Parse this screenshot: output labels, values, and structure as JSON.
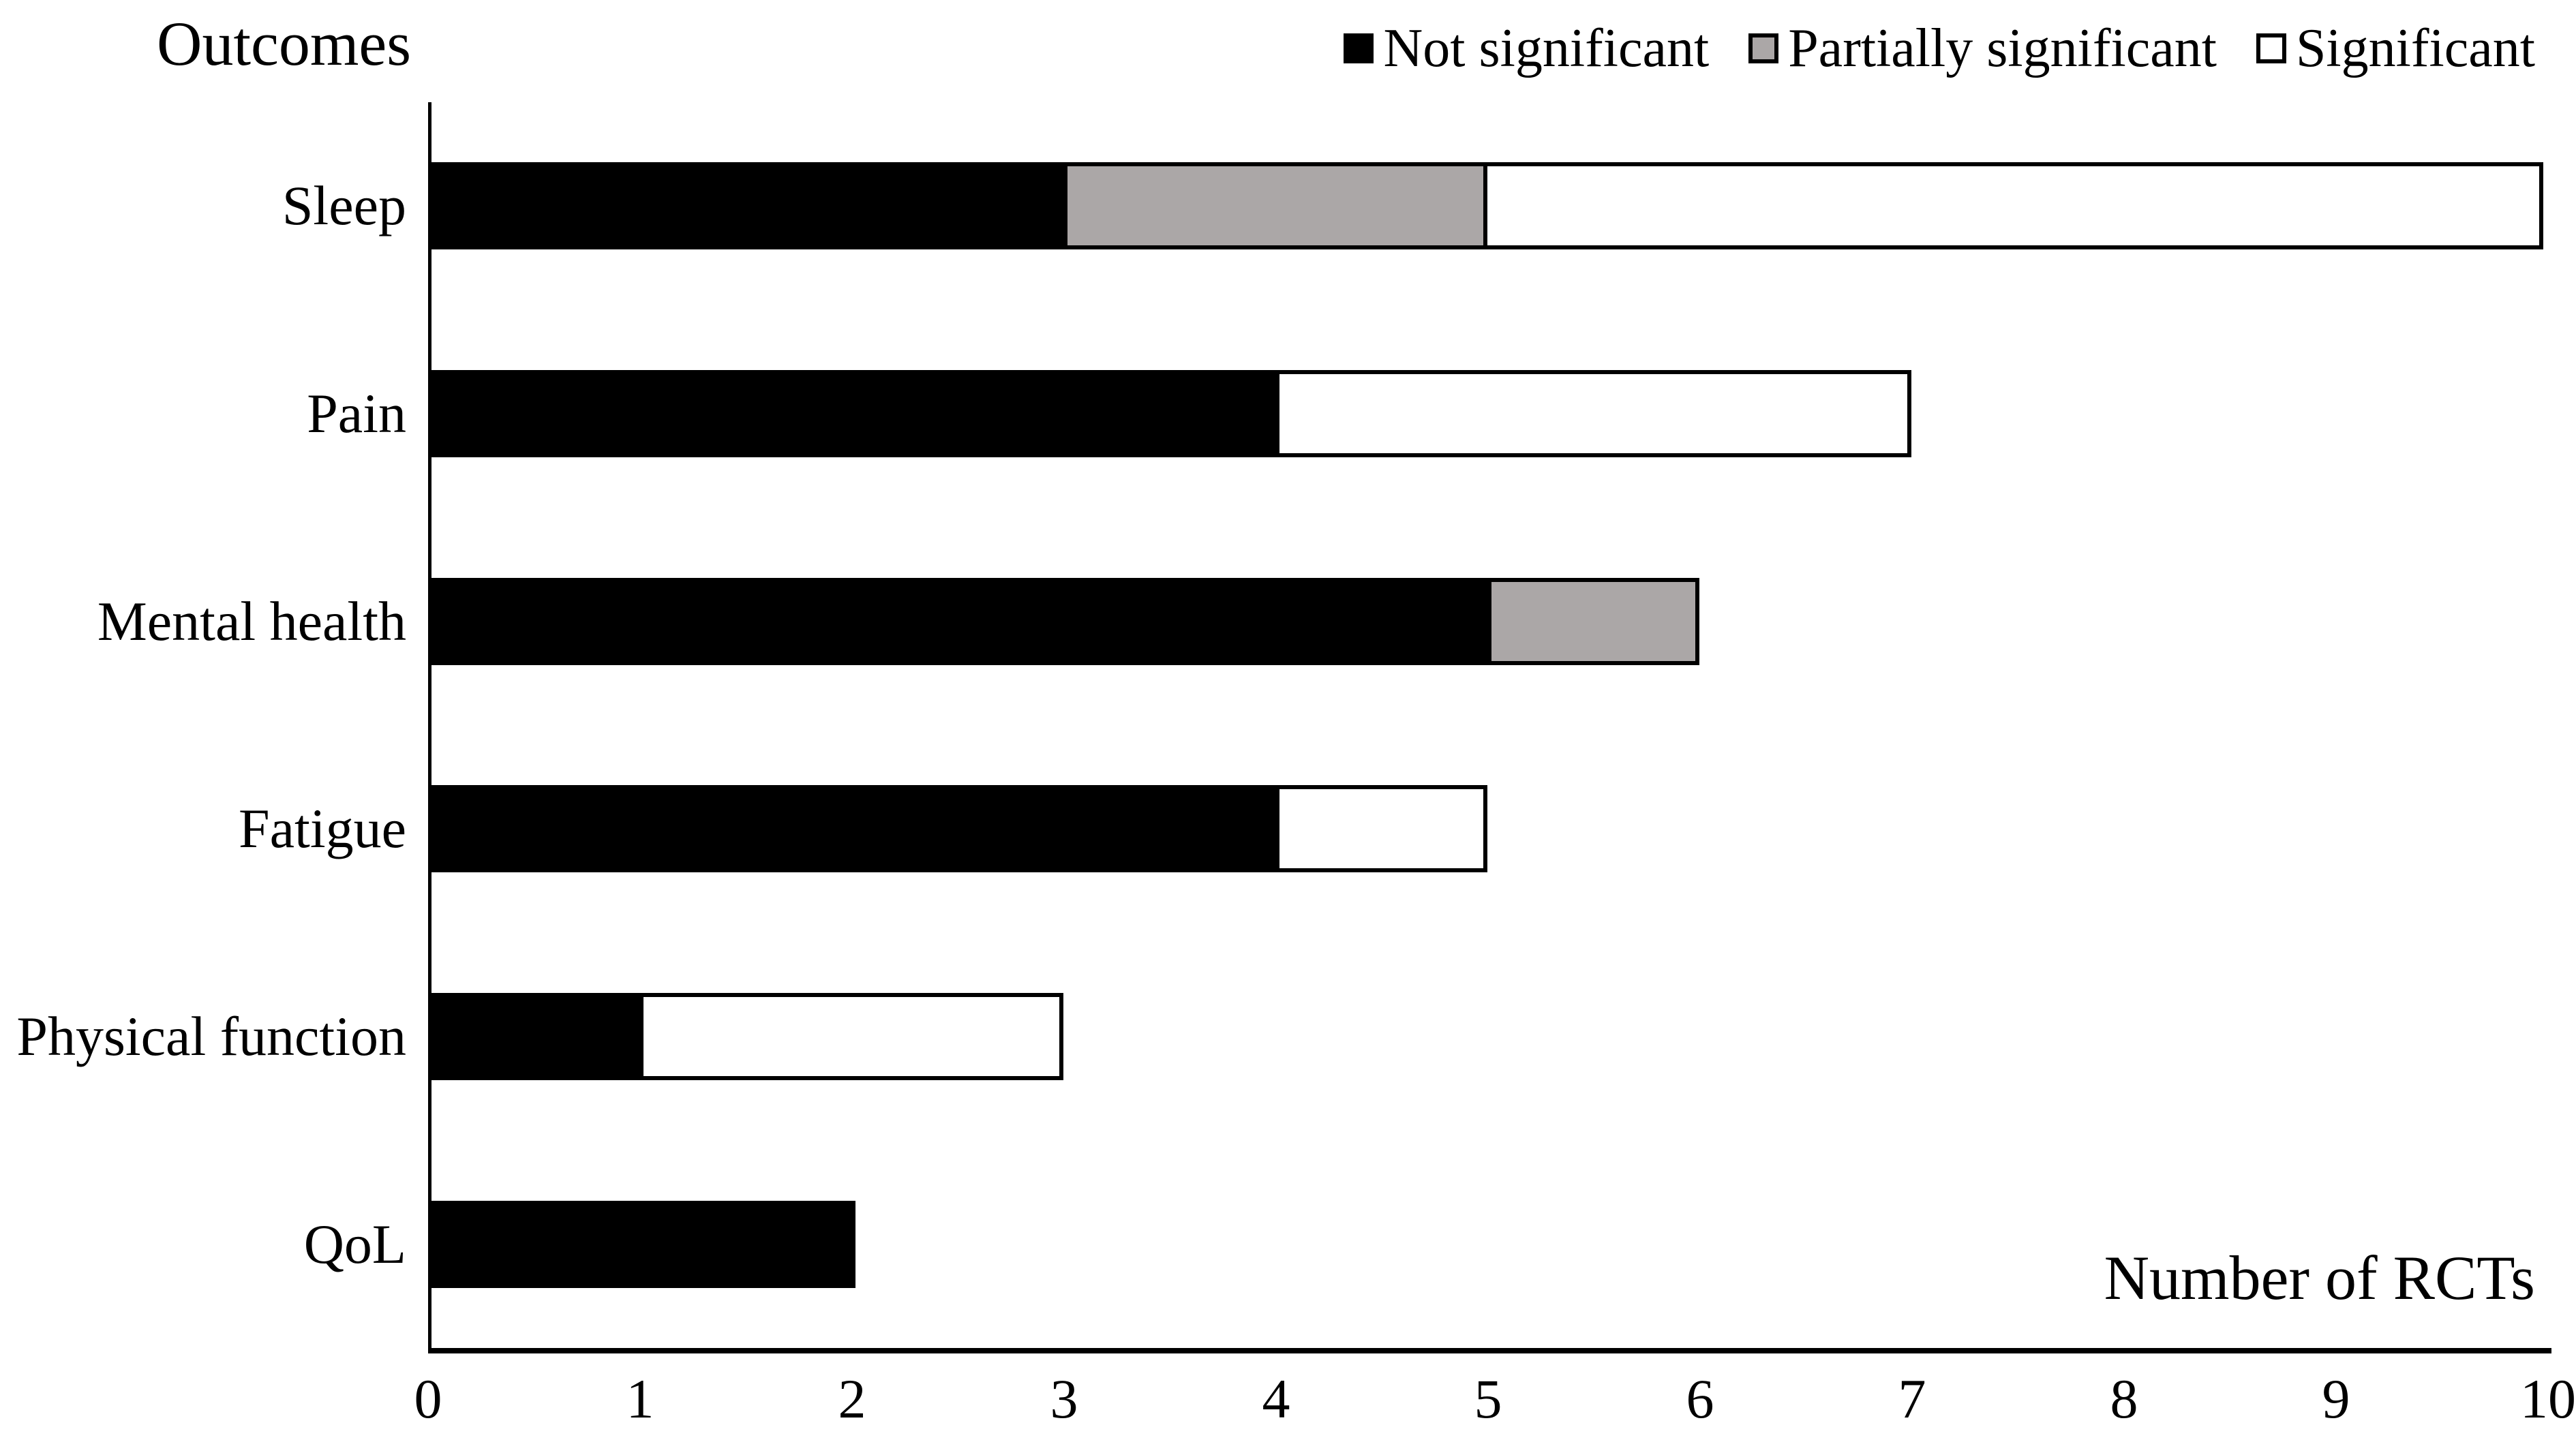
{
  "title": "Outcomes",
  "legend": {
    "position": "top-right",
    "items": [
      "Not significant",
      "Partially significant",
      "Significant"
    ]
  },
  "x_axis_label": "Number of RCTs",
  "colors": {
    "not_significant": "#000000",
    "partially_significant": "#aba7a7",
    "significant": "#ffffff",
    "bar_border": "#000000",
    "axis": "#000000",
    "background": "#ffffff"
  },
  "chart_data": {
    "type": "bar",
    "orientation": "horizontal",
    "stacked": true,
    "title": "Outcomes",
    "xlabel": "Number of RCTs",
    "ylabel": "Outcomes",
    "categories": [
      "Sleep",
      "Pain",
      "Mental health",
      "Fatigue",
      "Physical function",
      "QoL"
    ],
    "series": [
      {
        "name": "Not significant",
        "color": "#000000",
        "values": [
          3,
          4,
          5,
          4,
          1,
          2
        ]
      },
      {
        "name": "Partially significant",
        "color": "#aba7a7",
        "values": [
          2,
          0,
          1,
          0,
          0,
          0
        ]
      },
      {
        "name": "Significant",
        "color": "#ffffff",
        "values": [
          5,
          3,
          0,
          1,
          2,
          0
        ]
      }
    ],
    "totals": [
      10,
      7,
      6,
      5,
      3,
      2
    ],
    "xlim": [
      0,
      10
    ],
    "xticks": [
      0,
      1,
      2,
      3,
      4,
      5,
      6,
      7,
      8,
      9,
      10
    ],
    "grid": false,
    "legend_position": "top-right"
  }
}
